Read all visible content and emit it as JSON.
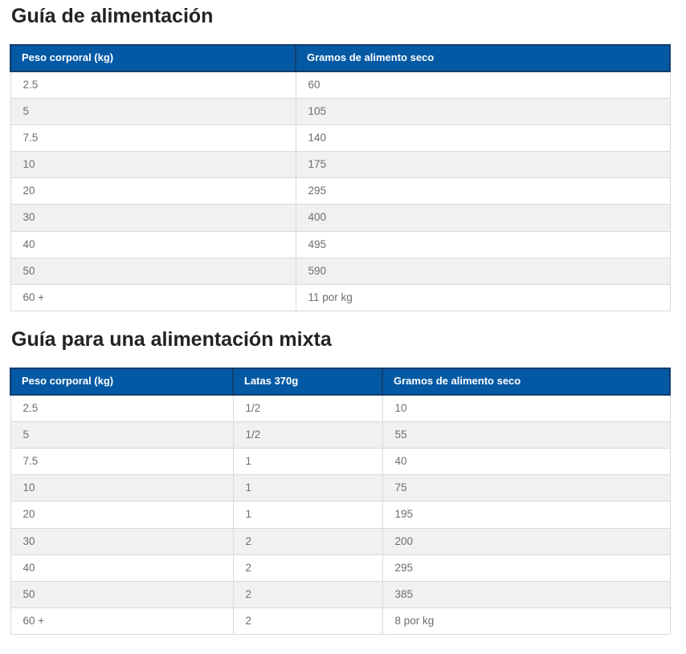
{
  "colors": {
    "header_bg": "#0459A4",
    "header_border": "#123F6E",
    "header_text": "#FFFFFF",
    "cell_text": "#6D6E71",
    "stripe_bg": "#F1F1F2",
    "body_border": "#D9D9D9",
    "title_text": "#232323",
    "page_bg": "#FFFFFF"
  },
  "sections": [
    {
      "title": "Guía de alimentación",
      "table": {
        "headers": [
          "Peso corporal (kg)",
          "Gramos de alimento seco"
        ],
        "rows": [
          [
            "2.5",
            "60"
          ],
          [
            "5",
            "105"
          ],
          [
            "7.5",
            "140"
          ],
          [
            "10",
            "175"
          ],
          [
            "20",
            "295"
          ],
          [
            "30",
            "400"
          ],
          [
            "40",
            "495"
          ],
          [
            "50",
            "590"
          ],
          [
            "60 +",
            "11 por kg"
          ]
        ]
      }
    },
    {
      "title": "Guía para una alimentación mixta",
      "table": {
        "headers": [
          "Peso corporal (kg)",
          "Latas 370g",
          "Gramos de alimento seco"
        ],
        "rows": [
          [
            "2.5",
            "1/2",
            "10"
          ],
          [
            "5",
            "1/2",
            "55"
          ],
          [
            "7.5",
            "1",
            "40"
          ],
          [
            "10",
            "1",
            "75"
          ],
          [
            "20",
            "1",
            "195"
          ],
          [
            "30",
            "2",
            "200"
          ],
          [
            "40",
            "2",
            "295"
          ],
          [
            "50",
            "2",
            "385"
          ],
          [
            "60 +",
            "2",
            "8 por kg"
          ]
        ]
      }
    }
  ]
}
